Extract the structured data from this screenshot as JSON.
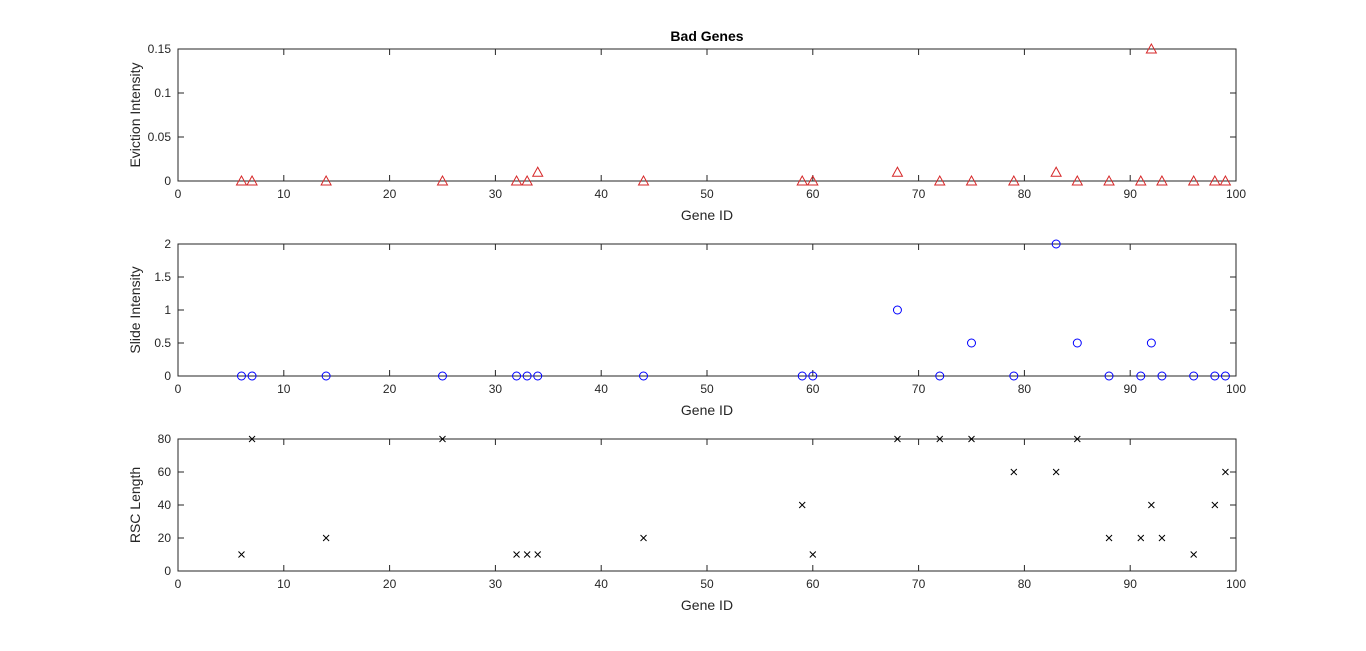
{
  "chart_data": [
    {
      "type": "scatter",
      "title": "Bad Genes",
      "xlabel": "Gene ID",
      "ylabel": "Eviction Intensity",
      "xlim": [
        0,
        100
      ],
      "ylim": [
        0,
        0.15
      ],
      "xticks": [
        0,
        10,
        20,
        30,
        40,
        50,
        60,
        70,
        80,
        90,
        100
      ],
      "yticks": [
        0,
        0.05,
        0.1,
        0.15
      ],
      "xtick_labels": [
        "0",
        "10",
        "20",
        "30",
        "40",
        "50",
        "60",
        "70",
        "80",
        "90",
        "100"
      ],
      "ytick_labels": [
        "0",
        "0.05",
        "0.1",
        "0.15"
      ],
      "marker": "triangle",
      "color": "#d62728",
      "grid": false,
      "x": [
        6,
        7,
        14,
        25,
        32,
        33,
        34,
        44,
        59,
        60,
        68,
        72,
        75,
        79,
        83,
        85,
        88,
        91,
        92,
        93,
        96,
        98,
        99
      ],
      "y": [
        0,
        0,
        0,
        0,
        0,
        0,
        0.01,
        0,
        0,
        0,
        0.01,
        0,
        0,
        0,
        0.01,
        0,
        0,
        0,
        0.15,
        0,
        0,
        0,
        0
      ]
    },
    {
      "type": "scatter",
      "title": "",
      "xlabel": "Gene ID",
      "ylabel": "Slide Intensity",
      "xlim": [
        0,
        100
      ],
      "ylim": [
        0,
        2
      ],
      "xticks": [
        0,
        10,
        20,
        30,
        40,
        50,
        60,
        70,
        80,
        90,
        100
      ],
      "yticks": [
        0,
        0.5,
        1,
        1.5,
        2
      ],
      "xtick_labels": [
        "0",
        "10",
        "20",
        "30",
        "40",
        "50",
        "60",
        "70",
        "80",
        "90",
        "100"
      ],
      "ytick_labels": [
        "0",
        "0.5",
        "1",
        "1.5",
        "2"
      ],
      "marker": "circle",
      "color": "#0000ff",
      "grid": false,
      "x": [
        6,
        7,
        14,
        25,
        32,
        33,
        34,
        44,
        59,
        60,
        68,
        72,
        75,
        79,
        83,
        85,
        88,
        91,
        92,
        93,
        96,
        98,
        99
      ],
      "y": [
        0,
        0,
        0,
        0,
        0,
        0,
        0,
        0,
        0,
        0,
        1,
        0,
        0.5,
        0,
        2,
        0.5,
        0,
        0,
        0.5,
        0,
        0,
        0,
        0
      ]
    },
    {
      "type": "scatter",
      "title": "",
      "xlabel": "Gene ID",
      "ylabel": "RSC Length",
      "xlim": [
        0,
        100
      ],
      "ylim": [
        0,
        80
      ],
      "xticks": [
        0,
        10,
        20,
        30,
        40,
        50,
        60,
        70,
        80,
        90,
        100
      ],
      "yticks": [
        0,
        20,
        40,
        60,
        80
      ],
      "xtick_labels": [
        "0",
        "10",
        "20",
        "30",
        "40",
        "50",
        "60",
        "70",
        "80",
        "90",
        "100"
      ],
      "ytick_labels": [
        "0",
        "20",
        "40",
        "60",
        "80"
      ],
      "marker": "x",
      "color": "#000000",
      "grid": false,
      "x": [
        6,
        7,
        14,
        25,
        32,
        33,
        34,
        44,
        59,
        60,
        68,
        72,
        75,
        79,
        83,
        85,
        88,
        91,
        92,
        93,
        96,
        98,
        99
      ],
      "y": [
        10,
        80,
        20,
        80,
        10,
        10,
        10,
        20,
        40,
        10,
        80,
        80,
        80,
        60,
        60,
        80,
        20,
        20,
        40,
        20,
        10,
        40,
        60
      ]
    }
  ]
}
